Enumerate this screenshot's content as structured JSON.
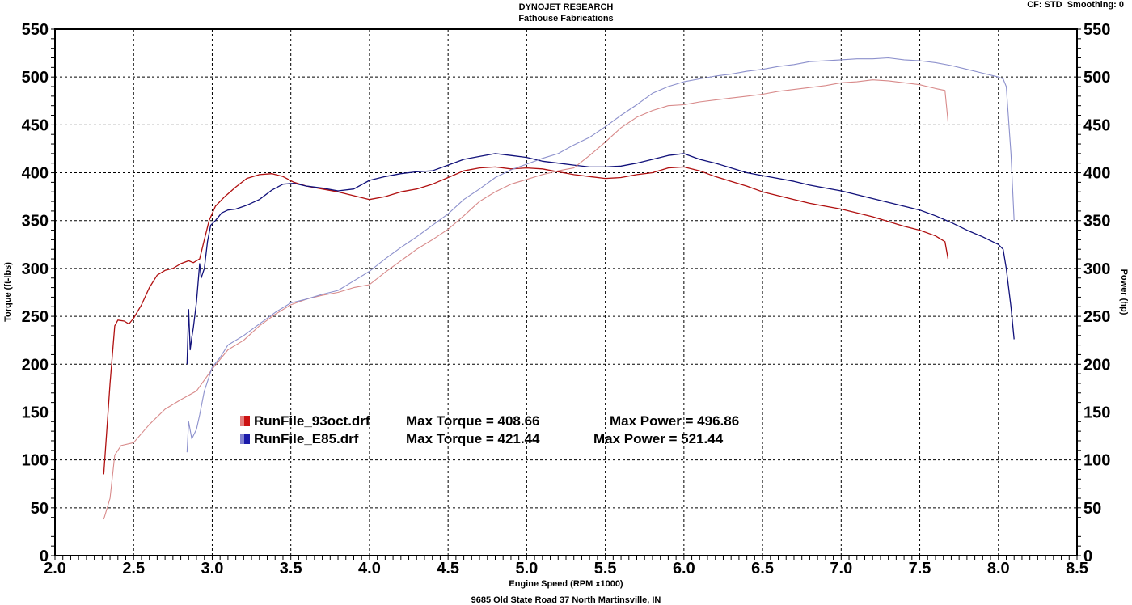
{
  "header": {
    "title": "DYNOJET RESEARCH",
    "subtitle": "Fathouse Fabrications",
    "cf_label": "CF: STD",
    "smoothing_label": "Smoothing: 0"
  },
  "footer": {
    "address": "9685 Old State Road 37 North Martinsville, IN"
  },
  "chart_data": {
    "type": "line",
    "title": "DYNOJET RESEARCH",
    "subtitle": "Fathouse Fabrications",
    "xlabel": "Engine Speed (RPM x1000)",
    "ylabel": "Torque (ft-lbs)",
    "y2label": "Power (hp)",
    "xlim": [
      2.0,
      8.5
    ],
    "ylim": [
      0,
      550
    ],
    "y2lim": [
      0,
      550
    ],
    "x_ticks": [
      "2.0",
      "2.5",
      "3.0",
      "3.5",
      "4.0",
      "4.5",
      "5.0",
      "5.5",
      "6.0",
      "6.5",
      "7.0",
      "7.5",
      "8.0",
      "8.5"
    ],
    "y_ticks": [
      "0",
      "50",
      "100",
      "150",
      "200",
      "250",
      "300",
      "350",
      "400",
      "450",
      "500",
      "550"
    ],
    "grid": true,
    "legend": [
      {
        "color_swatch": "#cc1111",
        "run": "RunFile_93oct.drf",
        "max_torque": "Max Torque = 408.66",
        "max_power": "Max Power = 496.86"
      },
      {
        "color_swatch": "#1a1aaa",
        "run": "RunFile_E85.drf",
        "max_torque": "Max Torque = 421.44",
        "max_power": "Max Power = 521.44"
      }
    ],
    "series": [
      {
        "name": "RunFile_93oct.drf Torque",
        "axis": "left",
        "color": "#b01010",
        "width": 1.3,
        "x": [
          2.31,
          2.35,
          2.38,
          2.4,
          2.44,
          2.47,
          2.5,
          2.55,
          2.6,
          2.65,
          2.7,
          2.75,
          2.8,
          2.85,
          2.88,
          2.92,
          2.95,
          2.98,
          3.02,
          3.08,
          3.15,
          3.22,
          3.3,
          3.38,
          3.45,
          3.52,
          3.6,
          3.7,
          3.8,
          3.9,
          4.0,
          4.1,
          4.2,
          4.3,
          4.4,
          4.5,
          4.6,
          4.7,
          4.8,
          4.9,
          5.0,
          5.1,
          5.2,
          5.3,
          5.4,
          5.5,
          5.6,
          5.7,
          5.8,
          5.9,
          6.0,
          6.1,
          6.2,
          6.3,
          6.4,
          6.5,
          6.6,
          6.7,
          6.8,
          6.9,
          7.0,
          7.1,
          7.2,
          7.3,
          7.4,
          7.5,
          7.6,
          7.66,
          7.68
        ],
        "y": [
          85,
          180,
          240,
          246,
          245,
          242,
          248,
          262,
          280,
          293,
          298,
          300,
          305,
          308,
          306,
          310,
          330,
          350,
          365,
          375,
          385,
          394,
          398,
          399,
          396,
          390,
          386,
          383,
          380,
          376,
          372,
          375,
          380,
          383,
          388,
          395,
          402,
          405,
          406,
          404,
          405,
          404,
          401,
          398,
          396,
          394,
          395,
          398,
          400,
          405,
          406,
          402,
          396,
          391,
          386,
          380,
          376,
          372,
          368,
          365,
          362,
          358,
          354,
          349,
          344,
          340,
          334,
          328,
          310
        ]
      },
      {
        "name": "RunFile_E85.drf Torque",
        "axis": "left",
        "color": "#10107a",
        "width": 1.3,
        "x": [
          2.84,
          2.85,
          2.86,
          2.87,
          2.88,
          2.9,
          2.92,
          2.93,
          2.95,
          2.97,
          2.99,
          3.02,
          3.06,
          3.1,
          3.15,
          3.22,
          3.3,
          3.38,
          3.45,
          3.52,
          3.6,
          3.7,
          3.8,
          3.9,
          4.0,
          4.1,
          4.2,
          4.3,
          4.4,
          4.5,
          4.6,
          4.7,
          4.8,
          4.9,
          5.0,
          5.1,
          5.2,
          5.3,
          5.4,
          5.5,
          5.6,
          5.7,
          5.8,
          5.9,
          6.0,
          6.1,
          6.2,
          6.3,
          6.4,
          6.5,
          6.6,
          6.7,
          6.8,
          6.9,
          7.0,
          7.1,
          7.2,
          7.3,
          7.4,
          7.5,
          7.6,
          7.7,
          7.8,
          7.9,
          8.0,
          8.03,
          8.05,
          8.08,
          8.1
        ],
        "y": [
          200,
          257,
          215,
          228,
          238,
          265,
          305,
          290,
          300,
          328,
          345,
          350,
          358,
          361,
          362,
          366,
          372,
          382,
          388,
          389,
          386,
          384,
          381,
          383,
          392,
          396,
          399,
          401,
          402,
          408,
          414,
          417,
          420,
          418,
          416,
          412,
          410,
          408,
          406,
          406,
          407,
          410,
          414,
          418,
          420,
          414,
          410,
          405,
          400,
          397,
          394,
          391,
          387,
          384,
          381,
          377,
          373,
          369,
          365,
          361,
          355,
          348,
          340,
          333,
          325,
          320,
          300,
          260,
          226
        ]
      },
      {
        "name": "RunFile_93oct.drf Power",
        "axis": "right",
        "color": "#d88a8a",
        "width": 1.1,
        "x": [
          2.31,
          2.35,
          2.38,
          2.42,
          2.5,
          2.6,
          2.7,
          2.8,
          2.9,
          3.0,
          3.1,
          3.2,
          3.3,
          3.4,
          3.5,
          3.6,
          3.7,
          3.8,
          3.9,
          4.0,
          4.1,
          4.2,
          4.3,
          4.4,
          4.5,
          4.6,
          4.7,
          4.8,
          4.9,
          5.0,
          5.1,
          5.2,
          5.3,
          5.4,
          5.5,
          5.6,
          5.7,
          5.8,
          5.9,
          6.0,
          6.1,
          6.2,
          6.3,
          6.4,
          6.5,
          6.6,
          6.7,
          6.8,
          6.9,
          7.0,
          7.1,
          7.2,
          7.3,
          7.4,
          7.5,
          7.6,
          7.66,
          7.68
        ],
        "y": [
          38,
          60,
          105,
          115,
          118,
          137,
          153,
          163,
          172,
          195,
          215,
          225,
          240,
          252,
          262,
          268,
          272,
          275,
          280,
          283,
          296,
          308,
          320,
          330,
          341,
          355,
          370,
          380,
          388,
          393,
          398,
          402,
          405,
          418,
          432,
          447,
          458,
          465,
          470,
          471,
          474,
          476,
          478,
          480,
          482,
          485,
          487,
          489,
          491,
          494,
          495,
          497,
          496,
          494,
          492,
          488,
          486,
          453
        ]
      },
      {
        "name": "RunFile_E85.drf Power",
        "axis": "right",
        "color": "#8c90cc",
        "width": 1.1,
        "x": [
          2.84,
          2.85,
          2.87,
          2.9,
          2.92,
          2.95,
          3.0,
          3.05,
          3.1,
          3.2,
          3.3,
          3.4,
          3.5,
          3.6,
          3.7,
          3.8,
          3.9,
          4.0,
          4.1,
          4.2,
          4.3,
          4.4,
          4.5,
          4.6,
          4.7,
          4.8,
          4.9,
          5.0,
          5.1,
          5.2,
          5.3,
          5.4,
          5.5,
          5.6,
          5.7,
          5.8,
          5.9,
          6.0,
          6.1,
          6.2,
          6.3,
          6.4,
          6.5,
          6.6,
          6.7,
          6.8,
          6.9,
          7.0,
          7.1,
          7.2,
          7.3,
          7.4,
          7.5,
          7.6,
          7.7,
          7.8,
          7.9,
          8.0,
          8.03,
          8.05,
          8.08,
          8.1
        ],
        "y": [
          108,
          140,
          122,
          132,
          147,
          172,
          197,
          207,
          220,
          230,
          242,
          254,
          264,
          268,
          273,
          277,
          287,
          297,
          310,
          322,
          333,
          345,
          357,
          372,
          383,
          395,
          403,
          409,
          415,
          420,
          429,
          437,
          448,
          460,
          471,
          483,
          490,
          495,
          498,
          501,
          503,
          506,
          508,
          511,
          513,
          516,
          517,
          518,
          519,
          519,
          520,
          518,
          517,
          515,
          512,
          508,
          504,
          500,
          498,
          490,
          420,
          350
        ]
      }
    ]
  }
}
